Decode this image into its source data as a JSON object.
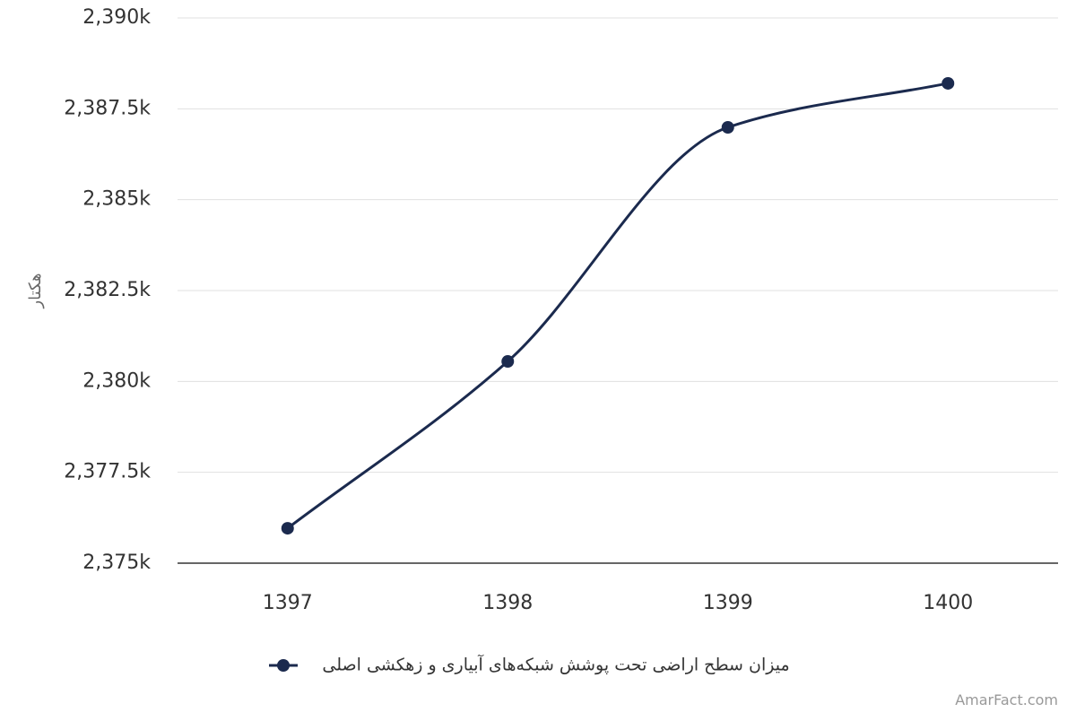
{
  "chart_data": {
    "type": "line",
    "y_label": "هکتار",
    "categories": [
      "1397",
      "1398",
      "1399",
      "1400"
    ],
    "series": [
      {
        "name": "میزان سطح اراضی تحت پوشش شبکه‌های آبیاری و زهکشی اصلی",
        "color": "#1b2a4e",
        "values": [
          2375960,
          2380550,
          2386990,
          2388200
        ]
      }
    ],
    "ylim": [
      2375000,
      2390000
    ],
    "yticks": [
      {
        "value": 2375000,
        "label": "2,375k"
      },
      {
        "value": 2377500,
        "label": "2,377.5k"
      },
      {
        "value": 2380000,
        "label": "2,380k"
      },
      {
        "value": 2382500,
        "label": "2,382.5k"
      },
      {
        "value": 2385000,
        "label": "2,385k"
      },
      {
        "value": 2387500,
        "label": "2,387.5k"
      },
      {
        "value": 2390000,
        "label": "2,390k"
      }
    ],
    "grid": true,
    "smooth": true,
    "legend": "bottom",
    "credit": "AmarFact.com"
  }
}
